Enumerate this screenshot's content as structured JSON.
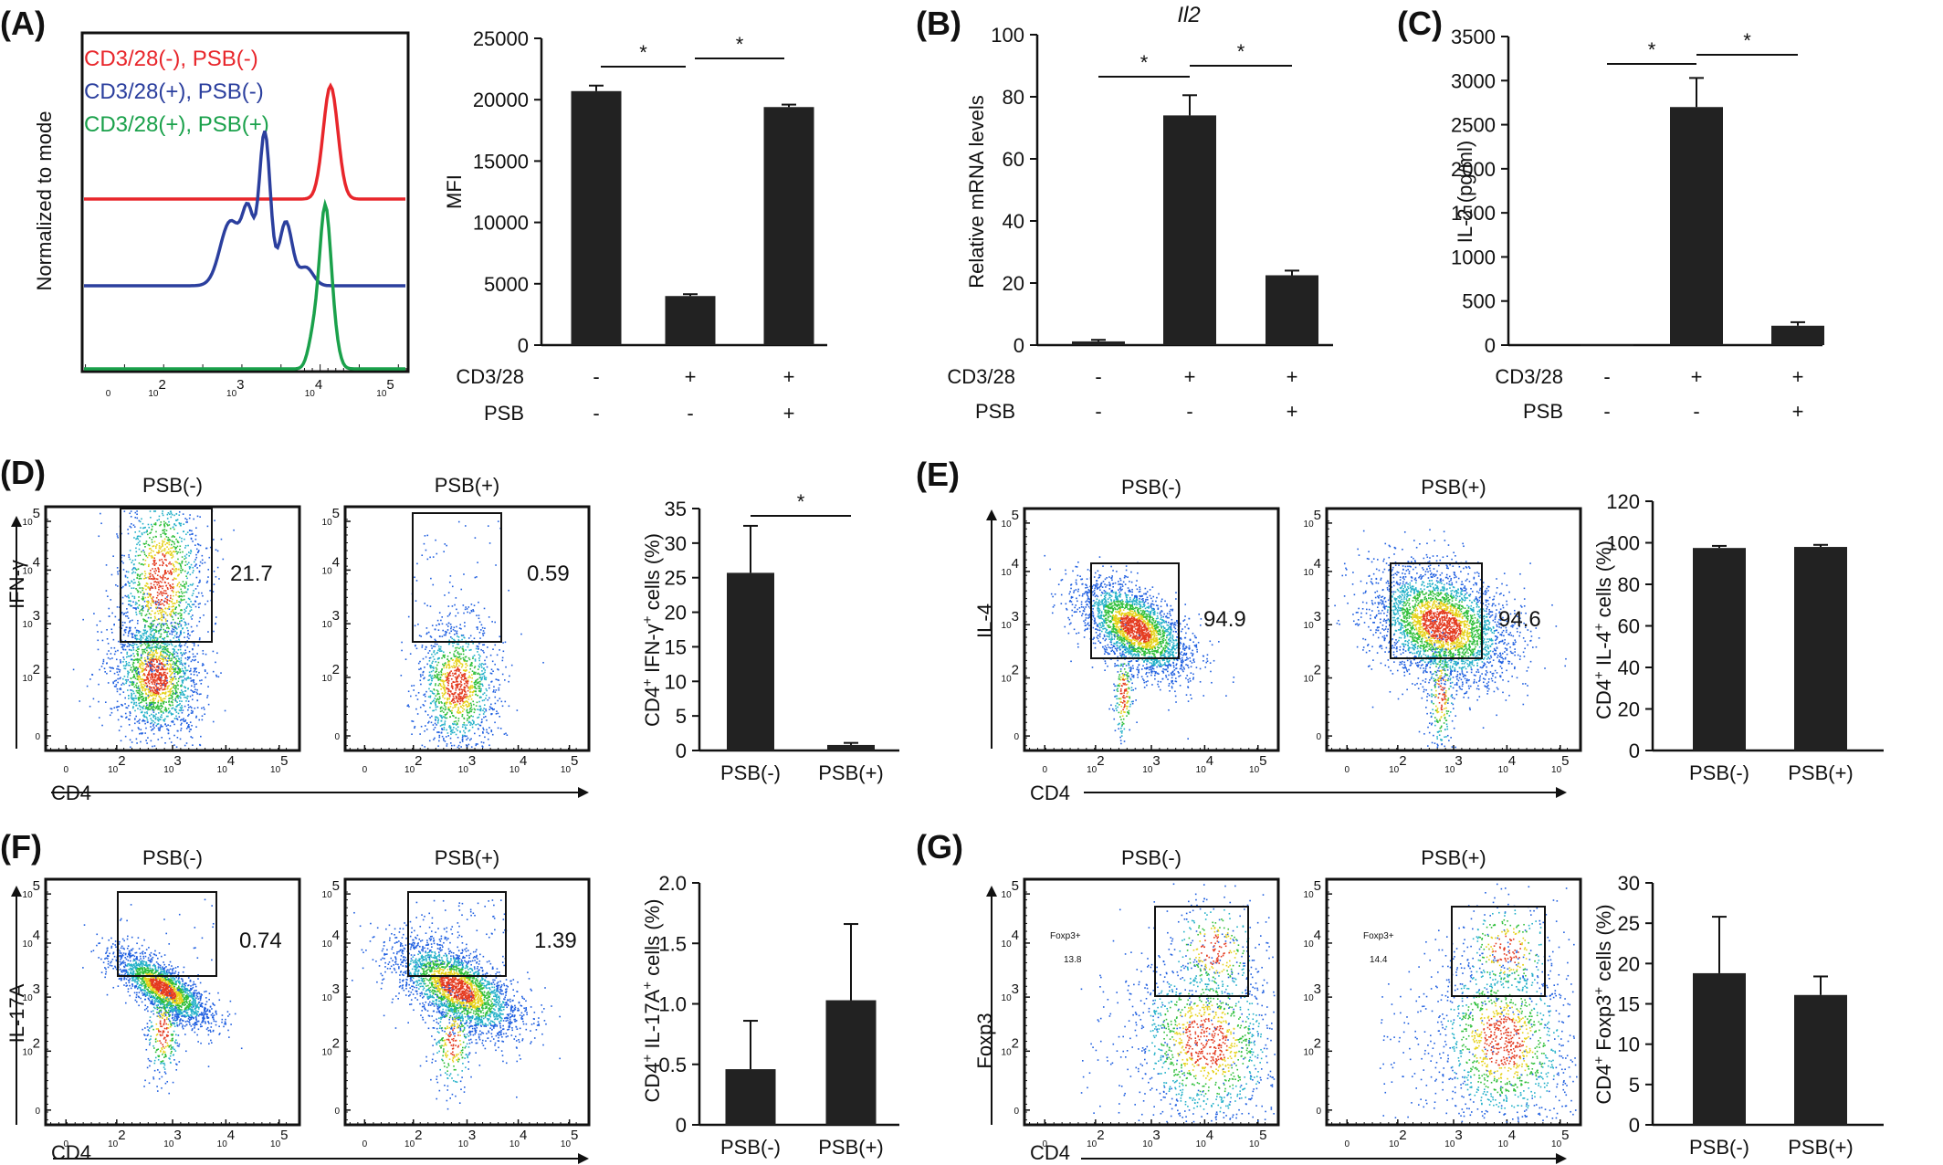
{
  "chart_data": [
    {
      "id": "A-histogram",
      "panel_label": "(A)",
      "type": "line",
      "ylabel": "Normalized to mode",
      "legend": [
        {
          "label": "CD3/28(-), PSB(-)",
          "color": "#e8262b"
        },
        {
          "label": "CD3/28(+), PSB(-)",
          "color": "#2b3f9e"
        },
        {
          "label": "CD3/28(+), PSB(+)",
          "color": "#1aa14b"
        }
      ],
      "xticks": [
        "0",
        "10",
        "10",
        "10",
        "10"
      ],
      "xtick_exp": [
        "",
        "2",
        "3",
        "4",
        "5"
      ]
    },
    {
      "id": "A-bar",
      "type": "bar",
      "ylabel": "MFI",
      "ylim": [
        0,
        25000
      ],
      "yticks": [
        0,
        5000,
        10000,
        15000,
        20000,
        25000
      ],
      "values": [
        20700,
        4000,
        19400
      ],
      "errors": [
        450,
        150,
        200
      ],
      "rows": [
        {
          "label": "CD3/28",
          "values": [
            "-",
            "+",
            "+"
          ]
        },
        {
          "label": "PSB",
          "values": [
            "-",
            "-",
            "+"
          ]
        }
      ],
      "significance": [
        {
          "from": 0,
          "to": 1,
          "label": "*"
        },
        {
          "from": 1,
          "to": 2,
          "label": "*"
        }
      ]
    },
    {
      "id": "B",
      "panel_label": "(B)",
      "type": "bar",
      "title": "Il2",
      "ylabel": "Relative mRNA levels",
      "ylim": [
        0,
        100
      ],
      "yticks": [
        0,
        20,
        40,
        60,
        80,
        100
      ],
      "values": [
        1.2,
        74,
        22.5
      ],
      "errors": [
        0.5,
        6.5,
        1.5
      ],
      "rows": [
        {
          "label": "CD3/28",
          "values": [
            "-",
            "+",
            "+"
          ]
        },
        {
          "label": "PSB",
          "values": [
            "-",
            "-",
            "+"
          ]
        }
      ],
      "significance": [
        {
          "from": 0,
          "to": 1,
          "label": "*"
        },
        {
          "from": 1,
          "to": 2,
          "label": "*"
        }
      ]
    },
    {
      "id": "C",
      "panel_label": "(C)",
      "type": "bar",
      "ylabel": "IL-2 (pg/ml)",
      "ylim": [
        0,
        3500
      ],
      "yticks": [
        0,
        500,
        1000,
        1500,
        2000,
        2500,
        3000,
        3500
      ],
      "values": [
        5,
        2700,
        220
      ],
      "errors": [
        0,
        330,
        40
      ],
      "rows": [
        {
          "label": "CD3/28",
          "values": [
            "-",
            "+",
            "+"
          ]
        },
        {
          "label": "PSB",
          "values": [
            "-",
            "-",
            "+"
          ]
        }
      ],
      "significance": [
        {
          "from": 0,
          "to": 1,
          "label": "*"
        },
        {
          "from": 1,
          "to": 2,
          "label": "*"
        }
      ]
    },
    {
      "id": "D",
      "panel_label": "(D)",
      "type": "scatter",
      "xlabel": "CD4",
      "ylabel": "IFN-γ",
      "plots": [
        {
          "title": "PSB(-)",
          "gate_value": "21.7"
        },
        {
          "title": "PSB(+)",
          "gate_value": "0.59"
        }
      ]
    },
    {
      "id": "D-bar",
      "type": "bar",
      "ylabel": "CD4+ IFN-γ+ cells (%)",
      "ylim": [
        0,
        35
      ],
      "yticks": [
        0,
        5,
        10,
        15,
        20,
        25,
        30,
        35
      ],
      "categories": [
        "PSB(-)",
        "PSB(+)"
      ],
      "values": [
        25.7,
        0.8
      ],
      "errors": [
        6.8,
        0.3
      ],
      "significance": [
        {
          "from": 0,
          "to": 1,
          "label": "*"
        }
      ]
    },
    {
      "id": "E",
      "panel_label": "(E)",
      "type": "scatter",
      "xlabel": "CD4",
      "ylabel": "IL-4",
      "plots": [
        {
          "title": "PSB(-)",
          "gate_value": "94.9"
        },
        {
          "title": "PSB(+)",
          "gate_value": "94.6"
        }
      ]
    },
    {
      "id": "E-bar",
      "type": "bar",
      "ylabel": "CD4+ IL-4+ cells (%)",
      "ylim": [
        0,
        120
      ],
      "yticks": [
        0,
        20,
        40,
        60,
        80,
        100,
        120
      ],
      "categories": [
        "PSB(-)",
        "PSB(+)"
      ],
      "values": [
        97.5,
        98
      ],
      "errors": [
        1,
        1
      ]
    },
    {
      "id": "F",
      "panel_label": "(F)",
      "type": "scatter",
      "xlabel": "CD4",
      "ylabel": "IL-17A",
      "plots": [
        {
          "title": "PSB(-)",
          "gate_value": "0.74"
        },
        {
          "title": "PSB(+)",
          "gate_value": "1.39"
        }
      ]
    },
    {
      "id": "F-bar",
      "type": "bar",
      "ylabel": "CD4+ IL-17A+ cells (%)",
      "ylim": [
        0,
        2.0
      ],
      "yticks": [
        "0",
        "0.5",
        "1.0",
        "1.5",
        "2.0"
      ],
      "categories": [
        "PSB(-)",
        "PSB(+)"
      ],
      "values": [
        0.46,
        1.03
      ],
      "errors": [
        0.4,
        0.63
      ]
    },
    {
      "id": "G",
      "panel_label": "(G)",
      "type": "scatter",
      "xlabel": "CD4",
      "ylabel": "Foxp3",
      "plots": [
        {
          "title": "PSB(-)",
          "gate_label": "Foxp3+",
          "gate_value": "13.8"
        },
        {
          "title": "PSB(+)",
          "gate_label": "Foxp3+",
          "gate_value": "14.4"
        }
      ]
    },
    {
      "id": "G-bar",
      "type": "bar",
      "ylabel": "CD4+ Foxp3+ cells (%)",
      "ylim": [
        0,
        30
      ],
      "yticks": [
        0,
        5,
        10,
        15,
        20,
        25,
        30
      ],
      "categories": [
        "PSB(-)",
        "PSB(+)"
      ],
      "values": [
        18.8,
        16.1
      ],
      "errors": [
        7,
        2.3
      ]
    }
  ],
  "colors": {
    "bar": "#222222",
    "red": "#e8262b",
    "blue": "#2b3f9e",
    "green": "#1aa14b",
    "dot_blue": "#1f5fe0",
    "dot_cyan": "#22b0c8",
    "dot_green": "#2fbf3a",
    "dot_yellow": "#e6d21a",
    "dot_red": "#e43a1f"
  }
}
